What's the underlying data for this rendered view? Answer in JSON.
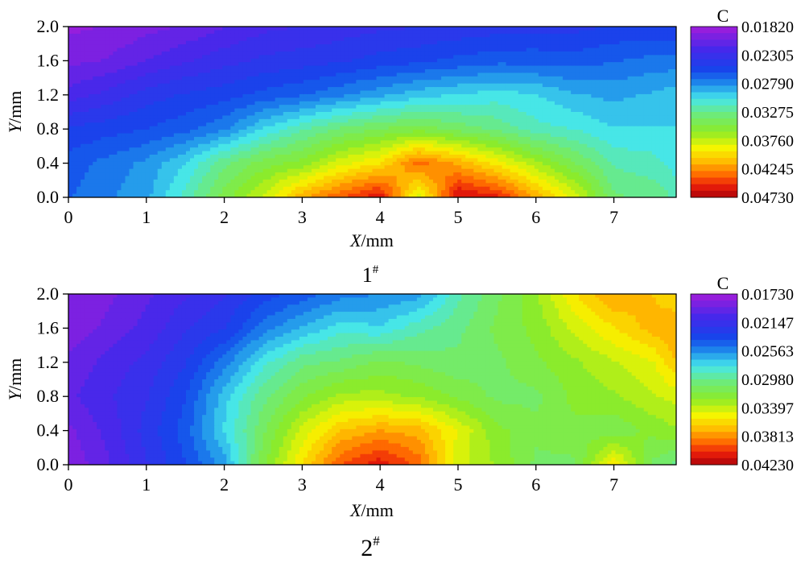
{
  "chart_data": [
    {
      "type": "heatmap",
      "panel_label": "1",
      "panel_label_sup": "#",
      "xlabel_var": "X",
      "xlabel_unit": "/mm",
      "ylabel_var": "Y",
      "ylabel_unit": "/mm",
      "x_ticks": [
        "0",
        "1",
        "2",
        "3",
        "4",
        "5",
        "6",
        "7"
      ],
      "y_ticks": [
        "0.0",
        "0.4",
        "0.8",
        "1.2",
        "1.6",
        "2.0"
      ],
      "xlim": [
        0,
        7.8
      ],
      "ylim": [
        0,
        2.0
      ],
      "colorbar_title": "C",
      "colorbar_labels": [
        "0.01820",
        "0.02305",
        "0.02790",
        "0.03275",
        "0.03760",
        "0.04245",
        "0.04730"
      ],
      "colorbar_range": [
        0.0182,
        0.0473
      ],
      "x": [
        0,
        0.5,
        1,
        1.5,
        2,
        2.5,
        3,
        3.5,
        4,
        4.5,
        5,
        5.5,
        6,
        6.5,
        7,
        7.5,
        7.8
      ],
      "y": [
        0,
        0.4,
        0.8,
        1.2,
        1.6,
        2.0
      ],
      "z": [
        [
          0.0265,
          0.0275,
          0.0285,
          0.0315,
          0.035,
          0.038,
          0.042,
          0.0445,
          0.0465,
          0.038,
          0.047,
          0.046,
          0.042,
          0.0385,
          0.0335,
          0.033,
          0.032
        ],
        [
          0.026,
          0.027,
          0.028,
          0.03,
          0.033,
          0.035,
          0.036,
          0.0385,
          0.04,
          0.044,
          0.042,
          0.0395,
          0.037,
          0.0345,
          0.032,
          0.0315,
          0.0305
        ],
        [
          0.0245,
          0.025,
          0.0255,
          0.0262,
          0.0275,
          0.03,
          0.032,
          0.0335,
          0.0345,
          0.035,
          0.034,
          0.033,
          0.0315,
          0.031,
          0.03,
          0.03,
          0.03
        ],
        [
          0.0215,
          0.0225,
          0.0238,
          0.0245,
          0.025,
          0.0258,
          0.0265,
          0.0275,
          0.0285,
          0.0295,
          0.03,
          0.0305,
          0.03,
          0.029,
          0.0285,
          0.029,
          0.0295
        ],
        [
          0.0195,
          0.02,
          0.021,
          0.022,
          0.0228,
          0.0235,
          0.0238,
          0.0242,
          0.0248,
          0.0252,
          0.0258,
          0.0262,
          0.0262,
          0.026,
          0.0265,
          0.027,
          0.027
        ],
        [
          0.0185,
          0.0188,
          0.0195,
          0.02,
          0.021,
          0.0218,
          0.0222,
          0.0226,
          0.023,
          0.0232,
          0.0235,
          0.0238,
          0.024,
          0.024,
          0.0245,
          0.0245,
          0.0245
        ]
      ]
    },
    {
      "type": "heatmap",
      "panel_label": "2",
      "panel_label_sup": "#",
      "xlabel_var": "X",
      "xlabel_unit": "/mm",
      "ylabel_var": "Y",
      "ylabel_unit": "/mm",
      "x_ticks": [
        "0",
        "1",
        "2",
        "3",
        "4",
        "5",
        "6",
        "7"
      ],
      "y_ticks": [
        "0.0",
        "0.4",
        "0.8",
        "1.2",
        "1.6",
        "2.0"
      ],
      "xlim": [
        0,
        7.8
      ],
      "ylim": [
        0,
        2.0
      ],
      "colorbar_title": "C",
      "colorbar_labels": [
        "0.01730",
        "0.02147",
        "0.02563",
        "0.02980",
        "0.03397",
        "0.03813",
        "0.04230"
      ],
      "colorbar_range": [
        0.0173,
        0.0423
      ],
      "x": [
        0,
        0.5,
        1,
        1.5,
        2,
        2.5,
        3,
        3.5,
        4,
        4.5,
        5,
        5.5,
        6,
        6.5,
        7,
        7.5,
        7.8
      ],
      "y": [
        0,
        0.4,
        0.8,
        1.2,
        1.6,
        2.0
      ],
      "z": [
        [
          0.018,
          0.0195,
          0.0215,
          0.0235,
          0.026,
          0.032,
          0.036,
          0.04,
          0.0415,
          0.0395,
          0.0345,
          0.033,
          0.031,
          0.031,
          0.036,
          0.031,
          0.03
        ],
        [
          0.0185,
          0.02,
          0.022,
          0.024,
          0.0275,
          0.031,
          0.0345,
          0.037,
          0.038,
          0.0375,
          0.035,
          0.0325,
          0.0315,
          0.032,
          0.0315,
          0.0325,
          0.033
        ],
        [
          0.0195,
          0.0205,
          0.0215,
          0.0235,
          0.027,
          0.03,
          0.032,
          0.0335,
          0.0335,
          0.033,
          0.032,
          0.031,
          0.031,
          0.0325,
          0.033,
          0.034,
          0.0345
        ],
        [
          0.019,
          0.02,
          0.021,
          0.0225,
          0.025,
          0.028,
          0.03,
          0.0305,
          0.0315,
          0.031,
          0.0305,
          0.031,
          0.032,
          0.033,
          0.034,
          0.035,
          0.037
        ],
        [
          0.018,
          0.019,
          0.02,
          0.0215,
          0.0225,
          0.025,
          0.0265,
          0.028,
          0.0275,
          0.029,
          0.03,
          0.0315,
          0.0325,
          0.0345,
          0.036,
          0.0375,
          0.038
        ],
        [
          0.018,
          0.0185,
          0.0195,
          0.0205,
          0.0215,
          0.023,
          0.024,
          0.025,
          0.0255,
          0.026,
          0.029,
          0.031,
          0.033,
          0.036,
          0.038,
          0.037,
          0.036
        ]
      ]
    }
  ]
}
